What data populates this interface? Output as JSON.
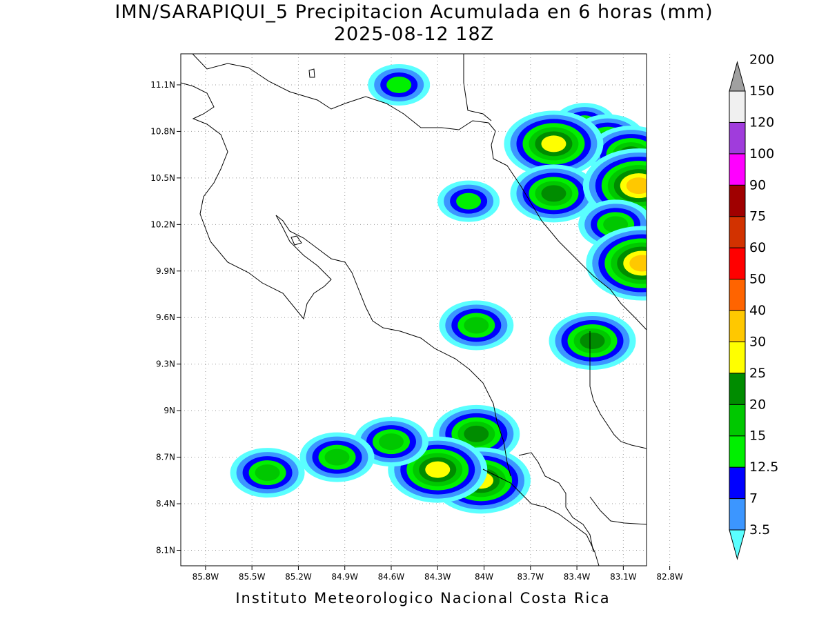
{
  "header": {
    "title": "IMN/SARAPIQUI_5 Precipitacion Acumulada en 6 horas (mm)",
    "subtitle": "2025-08-12 18Z"
  },
  "footer": {
    "credit": "Instituto Meteorologico Nacional Costa Rica"
  },
  "map": {
    "lat_ticks": [
      "11.1N",
      "10.8N",
      "10.5N",
      "10.2N",
      "9.9N",
      "9.6N",
      "9.3N",
      "9N",
      "8.7N",
      "8.4N",
      "8.1N"
    ],
    "lon_ticks": [
      "85.8W",
      "85.5W",
      "85.2W",
      "84.9W",
      "84.6W",
      "84.3W",
      "84W",
      "83.7W",
      "83.4W",
      "83.1W",
      "82.8W"
    ],
    "lat_range": [
      8.0,
      11.3
    ],
    "lon_range": [
      -85.96,
      -82.95
    ],
    "grid": "dotted"
  },
  "colorbar": {
    "levels": [
      "3.5",
      "7",
      "12.5",
      "15",
      "20",
      "25",
      "30",
      "40",
      "50",
      "60",
      "75",
      "90",
      "100",
      "120",
      "150",
      "200"
    ],
    "colors": [
      "#5affff",
      "#3c96ff",
      "#0000ff",
      "#00f000",
      "#00c800",
      "#008c00",
      "#ffff00",
      "#ffc800",
      "#ff6400",
      "#ff0000",
      "#d23200",
      "#a00000",
      "#ff00ff",
      "#a03cdc",
      "#f0f0f0",
      "#a0a0a0"
    ]
  },
  "precip_cells": [
    {
      "lon": -83.35,
      "lat": 10.85,
      "level": 3
    },
    {
      "lon": -83.2,
      "lat": 10.75,
      "level": 4
    },
    {
      "lon": -83.05,
      "lat": 10.65,
      "level": 5
    },
    {
      "lon": -83.55,
      "lat": 10.72,
      "level": 6
    },
    {
      "lon": -83.55,
      "lat": 10.4,
      "level": 5
    },
    {
      "lon": -83.0,
      "lat": 10.45,
      "level": 7
    },
    {
      "lon": -83.15,
      "lat": 10.2,
      "level": 4
    },
    {
      "lon": -83.05,
      "lat": 9.95,
      "level": 5
    },
    {
      "lon": -82.98,
      "lat": 9.95,
      "level": 7
    },
    {
      "lon": -83.3,
      "lat": 9.45,
      "level": 5
    },
    {
      "lon": -84.05,
      "lat": 8.85,
      "level": 5
    },
    {
      "lon": -84.02,
      "lat": 8.55,
      "level": 6
    },
    {
      "lon": -84.3,
      "lat": 8.62,
      "level": 6
    },
    {
      "lon": -84.6,
      "lat": 8.8,
      "level": 4
    },
    {
      "lon": -85.4,
      "lat": 8.6,
      "level": 4
    },
    {
      "lon": -84.95,
      "lat": 8.7,
      "level": 4
    },
    {
      "lon": -84.05,
      "lat": 9.55,
      "level": 4
    },
    {
      "lon": -84.55,
      "lat": 11.1,
      "level": 3
    },
    {
      "lon": -84.1,
      "lat": 10.35,
      "level": 3
    }
  ]
}
